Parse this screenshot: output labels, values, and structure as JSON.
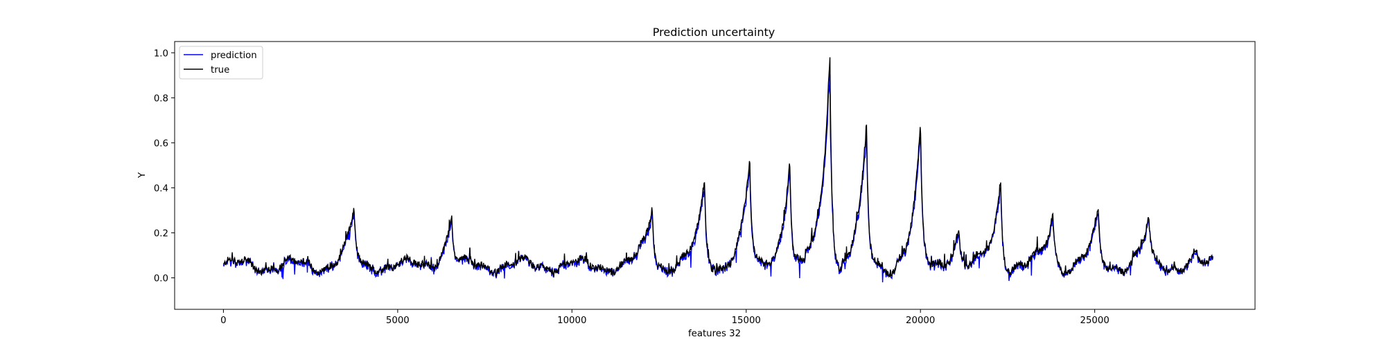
{
  "chart_data": {
    "type": "line",
    "title": "Prediction uncertainty",
    "xlabel": "features 32",
    "ylabel": "Y",
    "xlim": [
      -1400,
      29600
    ],
    "ylim": [
      -0.14,
      1.05
    ],
    "xticks": [
      0,
      5000,
      10000,
      15000,
      20000,
      25000
    ],
    "xtick_labels": [
      "0",
      "5000",
      "10000",
      "15000",
      "20000",
      "25000"
    ],
    "yticks": [
      0.0,
      0.2,
      0.4,
      0.6,
      0.8,
      1.0
    ],
    "ytick_labels": [
      "0.0",
      "0.2",
      "0.4",
      "0.6",
      "0.8",
      "1.0"
    ],
    "grid": false,
    "legend_position": "top-left",
    "series": [
      {
        "name": "prediction",
        "color": "#0000ff"
      },
      {
        "name": "true",
        "color": "#000000"
      }
    ],
    "peaks": [
      {
        "x": 3750,
        "y": 0.31
      },
      {
        "x": 6550,
        "y": 0.28
      },
      {
        "x": 12300,
        "y": 0.31
      },
      {
        "x": 13800,
        "y": 0.44
      },
      {
        "x": 15100,
        "y": 0.54
      },
      {
        "x": 16250,
        "y": 0.53
      },
      {
        "x": 17400,
        "y": 1.0
      },
      {
        "x": 18450,
        "y": 0.69
      },
      {
        "x": 20000,
        "y": 0.69
      },
      {
        "x": 21100,
        "y": 0.22
      },
      {
        "x": 22300,
        "y": 0.43
      },
      {
        "x": 23800,
        "y": 0.29
      },
      {
        "x": 25100,
        "y": 0.31
      },
      {
        "x": 26550,
        "y": 0.28
      },
      {
        "x": 27900,
        "y": 0.13
      }
    ],
    "x_max": 28400
  }
}
